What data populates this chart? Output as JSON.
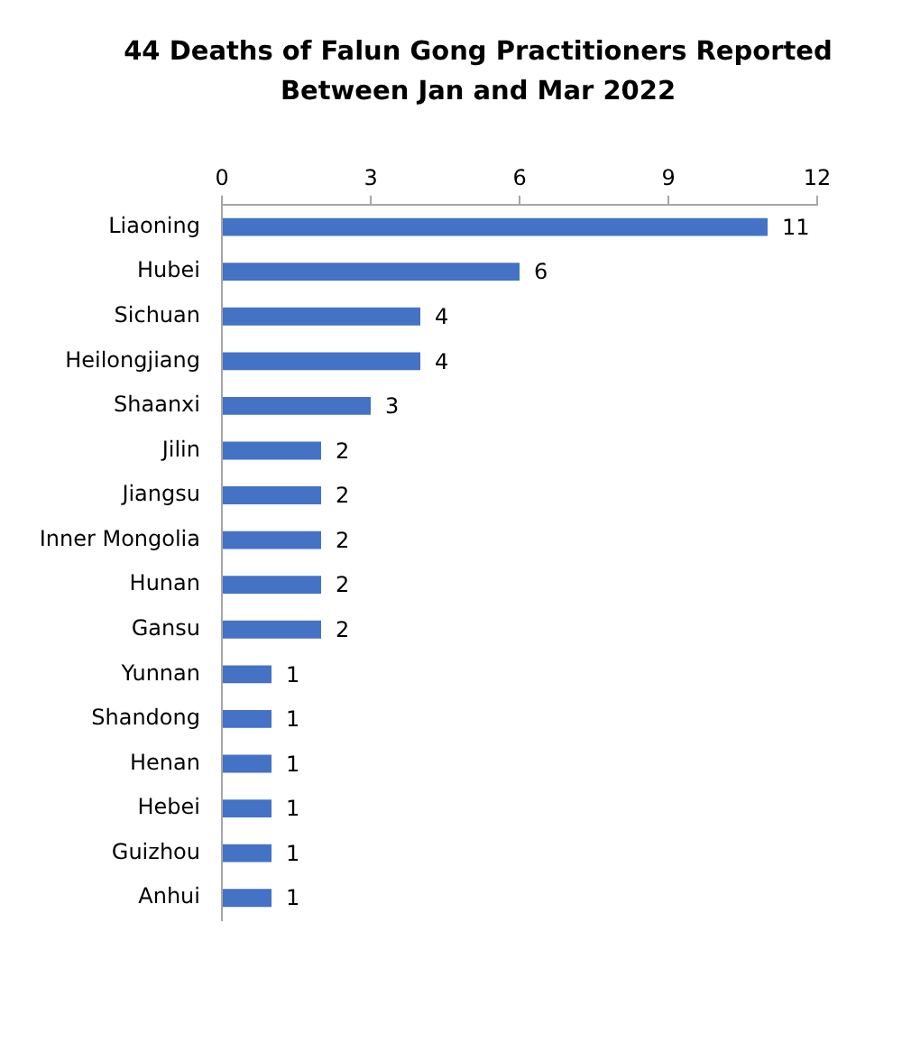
{
  "chart_data": {
    "type": "bar",
    "orientation": "horizontal",
    "title": "44 Deaths of Falun Gong Practitioners Reported Between Jan and Mar 2022",
    "categories": [
      "Liaoning",
      "Hubei",
      "Sichuan",
      "Heilongjiang",
      "Shaanxi",
      "Jilin",
      "Jiangsu",
      "Inner Mongolia",
      "Hunan",
      "Gansu",
      "Yunnan",
      "Shandong",
      "Henan",
      "Hebei",
      "Guizhou",
      "Anhui"
    ],
    "values": [
      11,
      6,
      4,
      4,
      3,
      2,
      2,
      2,
      2,
      2,
      1,
      1,
      1,
      1,
      1,
      1
    ],
    "color": "#4472c4",
    "xlim": [
      0,
      12
    ],
    "xticks": [
      0,
      3,
      6,
      9,
      12
    ],
    "data_labels": true
  }
}
